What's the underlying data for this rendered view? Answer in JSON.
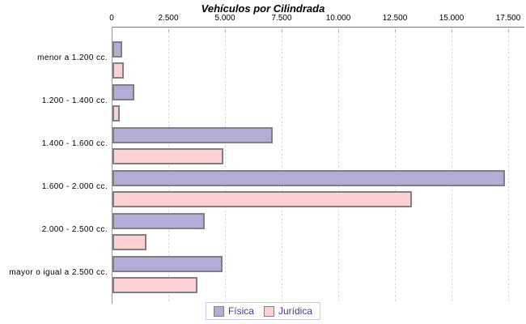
{
  "chart_data": {
    "type": "bar",
    "orientation": "horizontal",
    "title": "Vehículos por Cilindrada",
    "categories": [
      "menor a 1.200 cc.",
      "1.200 - 1.400 cc.",
      "1.400 - 1.600 cc.",
      "1.600 - 2.000 cc.",
      "2.000 - 2.500 cc.",
      "mayor o igual a 2.500 cc."
    ],
    "series": [
      {
        "name": "Física",
        "color": "#b5abd9",
        "values": [
          320,
          860,
          6950,
          17200,
          3950,
          4750
        ]
      },
      {
        "name": "Jurídica",
        "color": "#fdd0d4",
        "values": [
          410,
          200,
          4800,
          13100,
          1400,
          3650
        ]
      }
    ],
    "xlim": [
      0,
      17500
    ],
    "x_ticks": [
      0,
      2500,
      5000,
      7500,
      10000,
      12500,
      15000,
      17500
    ],
    "x_tick_labels": [
      "0",
      "2.500",
      "5.000",
      "7.500",
      "10.000",
      "12.500",
      "15.000",
      "17.500"
    ],
    "grid": "vertical-dashed",
    "axis_position": "top",
    "legend_position": "bottom-center",
    "colors": {
      "bar_border": "#808080",
      "axis": "#777777",
      "gridline": "#dcdcdc",
      "legend_text": "#463a8e",
      "legend_border": "#c9c9dd",
      "title_text": "#000000",
      "background": "#ffffff"
    }
  }
}
